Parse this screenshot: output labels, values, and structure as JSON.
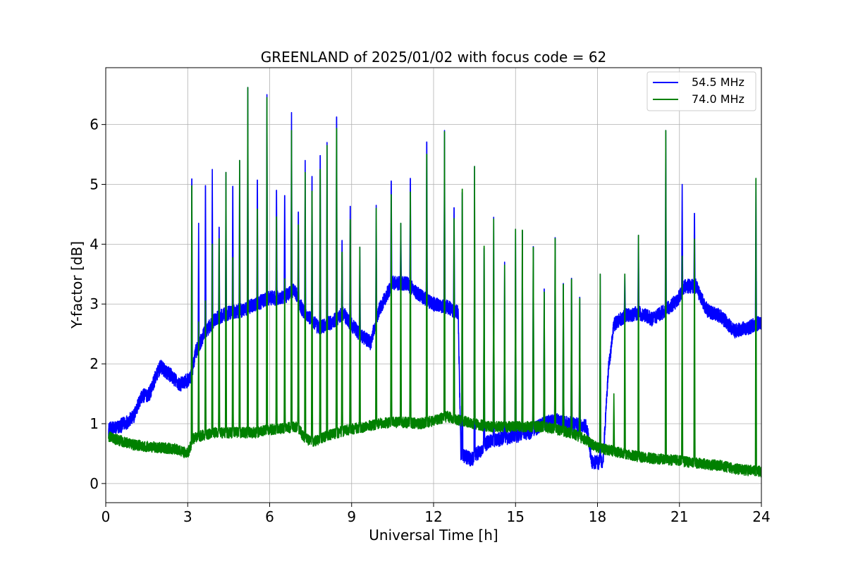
{
  "chart_data": {
    "type": "line",
    "title": "GREENLAND of 2025/01/02 with focus code = 62",
    "xlabel": "Universal Time [h]",
    "ylabel": "Y-factor [dB]",
    "xlim": [
      0,
      24
    ],
    "ylim": [
      -0.32,
      6.95
    ],
    "x_ticks": [
      0,
      3,
      6,
      9,
      12,
      15,
      18,
      21,
      24
    ],
    "y_ticks": [
      0,
      1,
      2,
      3,
      4,
      5,
      6
    ],
    "x_tick_labels": [
      "0",
      "3",
      "6",
      "9",
      "12",
      "15",
      "18",
      "21",
      "24"
    ],
    "y_tick_labels": [
      "0",
      "1",
      "2",
      "3",
      "4",
      "5",
      "6"
    ],
    "grid": true,
    "legend_position": "top-right",
    "series": [
      {
        "name": "54.5 MHz",
        "color": "#0000ff",
        "noise": 0.12,
        "baseline": [
          [
            0.1,
            0.9
          ],
          [
            0.5,
            0.95
          ],
          [
            1.0,
            1.1
          ],
          [
            1.3,
            1.45
          ],
          [
            1.6,
            1.5
          ],
          [
            1.8,
            1.75
          ],
          [
            2.0,
            1.95
          ],
          [
            2.4,
            1.8
          ],
          [
            2.7,
            1.65
          ],
          [
            3.1,
            1.75
          ],
          [
            3.3,
            2.2
          ],
          [
            3.6,
            2.5
          ],
          [
            4.0,
            2.75
          ],
          [
            4.5,
            2.85
          ],
          [
            5.0,
            2.9
          ],
          [
            5.5,
            3.0
          ],
          [
            6.0,
            3.1
          ],
          [
            6.5,
            3.1
          ],
          [
            6.9,
            3.25
          ],
          [
            7.2,
            2.9
          ],
          [
            7.8,
            2.6
          ],
          [
            8.3,
            2.7
          ],
          [
            8.7,
            2.85
          ],
          [
            8.9,
            2.7
          ],
          [
            9.3,
            2.5
          ],
          [
            9.7,
            2.35
          ],
          [
            10.0,
            2.9
          ],
          [
            10.5,
            3.35
          ],
          [
            11.0,
            3.35
          ],
          [
            11.5,
            3.15
          ],
          [
            12.0,
            3.0
          ],
          [
            12.5,
            2.95
          ],
          [
            12.9,
            2.85
          ],
          [
            13.0,
            0.5
          ],
          [
            13.4,
            0.4
          ],
          [
            14.0,
            0.7
          ],
          [
            14.5,
            0.75
          ],
          [
            15.0,
            0.8
          ],
          [
            15.5,
            0.85
          ],
          [
            16.0,
            1.0
          ],
          [
            16.5,
            1.05
          ],
          [
            17.0,
            1.0
          ],
          [
            17.6,
            0.95
          ],
          [
            17.8,
            0.35
          ],
          [
            18.2,
            0.35
          ],
          [
            18.4,
            1.9
          ],
          [
            18.6,
            2.65
          ],
          [
            19.0,
            2.8
          ],
          [
            19.5,
            2.85
          ],
          [
            20.0,
            2.75
          ],
          [
            20.5,
            2.9
          ],
          [
            20.9,
            3.05
          ],
          [
            21.2,
            3.3
          ],
          [
            21.6,
            3.3
          ],
          [
            22.0,
            2.9
          ],
          [
            22.5,
            2.8
          ],
          [
            23.0,
            2.55
          ],
          [
            23.5,
            2.6
          ],
          [
            24.0,
            2.7
          ]
        ],
        "spikes": [
          [
            3.15,
            5.45
          ],
          [
            3.4,
            4.35
          ],
          [
            3.65,
            5.25
          ],
          [
            3.9,
            5.25
          ],
          [
            4.15,
            4.45
          ],
          [
            4.4,
            5.2
          ],
          [
            4.65,
            5.2
          ],
          [
            4.9,
            5.4
          ],
          [
            5.2,
            6.62
          ],
          [
            5.55,
            5.3
          ],
          [
            5.9,
            6.5
          ],
          [
            6.25,
            5.1
          ],
          [
            6.55,
            5.0
          ],
          [
            6.8,
            6.2
          ],
          [
            7.05,
            4.7
          ],
          [
            7.3,
            5.4
          ],
          [
            7.55,
            5.4
          ],
          [
            7.85,
            5.8
          ],
          [
            8.1,
            5.7
          ],
          [
            8.45,
            6.5
          ],
          [
            8.65,
            4.2
          ],
          [
            8.95,
            4.85
          ],
          [
            9.3,
            3.95
          ],
          [
            9.9,
            4.65
          ],
          [
            10.45,
            5.25
          ],
          [
            10.8,
            4.35
          ],
          [
            11.15,
            5.3
          ],
          [
            11.75,
            6.0
          ],
          [
            12.4,
            5.9
          ],
          [
            12.75,
            4.8
          ],
          [
            13.05,
            5.35
          ],
          [
            13.5,
            5.3
          ],
          [
            13.85,
            4.3
          ],
          [
            14.2,
            4.45
          ],
          [
            14.6,
            3.7
          ],
          [
            15.0,
            4.25
          ],
          [
            15.25,
            4.6
          ],
          [
            15.65,
            4.3
          ],
          [
            16.05,
            3.5
          ],
          [
            16.45,
            4.45
          ],
          [
            16.75,
            3.6
          ],
          [
            17.05,
            3.7
          ],
          [
            17.35,
            3.35
          ],
          [
            18.1,
            3.5
          ],
          [
            18.6,
            1.5
          ],
          [
            19.0,
            3.5
          ],
          [
            19.5,
            4.15
          ],
          [
            20.5,
            5.9
          ],
          [
            21.1,
            5.0
          ],
          [
            21.55,
            4.65
          ],
          [
            23.8,
            5.1
          ]
        ]
      },
      {
        "name": "74.0 MHz",
        "color": "#008000",
        "noise": 0.09,
        "baseline": [
          [
            0.1,
            0.78
          ],
          [
            0.5,
            0.72
          ],
          [
            1.0,
            0.65
          ],
          [
            1.5,
            0.62
          ],
          [
            2.0,
            0.6
          ],
          [
            2.5,
            0.58
          ],
          [
            3.0,
            0.5
          ],
          [
            3.2,
            0.75
          ],
          [
            3.5,
            0.8
          ],
          [
            4.0,
            0.85
          ],
          [
            4.5,
            0.85
          ],
          [
            5.0,
            0.85
          ],
          [
            5.5,
            0.85
          ],
          [
            6.0,
            0.9
          ],
          [
            6.5,
            0.92
          ],
          [
            7.0,
            0.95
          ],
          [
            7.3,
            0.75
          ],
          [
            7.6,
            0.7
          ],
          [
            8.0,
            0.78
          ],
          [
            8.5,
            0.85
          ],
          [
            8.9,
            0.9
          ],
          [
            9.5,
            0.95
          ],
          [
            10.0,
            1.0
          ],
          [
            10.5,
            1.02
          ],
          [
            11.0,
            1.02
          ],
          [
            11.5,
            1.0
          ],
          [
            12.0,
            1.05
          ],
          [
            12.5,
            1.12
          ],
          [
            13.0,
            1.05
          ],
          [
            13.5,
            1.0
          ],
          [
            14.0,
            0.95
          ],
          [
            14.5,
            0.95
          ],
          [
            15.0,
            0.95
          ],
          [
            15.5,
            0.95
          ],
          [
            16.0,
            0.95
          ],
          [
            16.5,
            0.9
          ],
          [
            17.0,
            0.85
          ],
          [
            17.5,
            0.75
          ],
          [
            18.0,
            0.6
          ],
          [
            18.5,
            0.55
          ],
          [
            19.0,
            0.5
          ],
          [
            19.5,
            0.45
          ],
          [
            20.0,
            0.42
          ],
          [
            20.5,
            0.4
          ],
          [
            21.0,
            0.38
          ],
          [
            21.5,
            0.35
          ],
          [
            22.0,
            0.32
          ],
          [
            22.5,
            0.3
          ],
          [
            23.0,
            0.25
          ],
          [
            23.5,
            0.22
          ],
          [
            24.0,
            0.2
          ]
        ],
        "spikes": [
          [
            3.15,
            5.45
          ],
          [
            3.4,
            2.7
          ],
          [
            3.65,
            3.3
          ],
          [
            3.9,
            4.0
          ],
          [
            4.15,
            4.45
          ],
          [
            4.4,
            5.2
          ],
          [
            4.65,
            4.1
          ],
          [
            4.9,
            5.4
          ],
          [
            5.2,
            6.62
          ],
          [
            5.55,
            5.0
          ],
          [
            5.9,
            6.45
          ],
          [
            6.25,
            4.85
          ],
          [
            6.55,
            3.7
          ],
          [
            6.8,
            5.9
          ],
          [
            7.05,
            4.7
          ],
          [
            7.3,
            5.2
          ],
          [
            7.55,
            5.35
          ],
          [
            7.85,
            5.75
          ],
          [
            8.1,
            5.65
          ],
          [
            8.45,
            6.5
          ],
          [
            8.65,
            4.2
          ],
          [
            8.95,
            4.8
          ],
          [
            9.3,
            3.95
          ],
          [
            9.9,
            4.6
          ],
          [
            10.45,
            5.25
          ],
          [
            10.8,
            4.35
          ],
          [
            11.15,
            5.3
          ],
          [
            11.75,
            6.0
          ],
          [
            12.4,
            5.88
          ],
          [
            12.75,
            4.8
          ],
          [
            13.05,
            5.35
          ],
          [
            13.5,
            5.3
          ],
          [
            13.85,
            4.3
          ],
          [
            14.2,
            4.42
          ],
          [
            14.6,
            3.65
          ],
          [
            15.0,
            4.25
          ],
          [
            15.25,
            4.6
          ],
          [
            15.65,
            4.28
          ],
          [
            16.05,
            3.45
          ],
          [
            16.45,
            4.45
          ],
          [
            16.75,
            3.6
          ],
          [
            17.05,
            3.7
          ],
          [
            17.35,
            3.35
          ],
          [
            18.1,
            3.5
          ],
          [
            18.6,
            1.5
          ],
          [
            19.0,
            3.5
          ],
          [
            19.5,
            4.15
          ],
          [
            20.5,
            5.9
          ],
          [
            21.1,
            3.8
          ],
          [
            21.55,
            4.5
          ],
          [
            23.8,
            5.1
          ]
        ]
      }
    ]
  }
}
